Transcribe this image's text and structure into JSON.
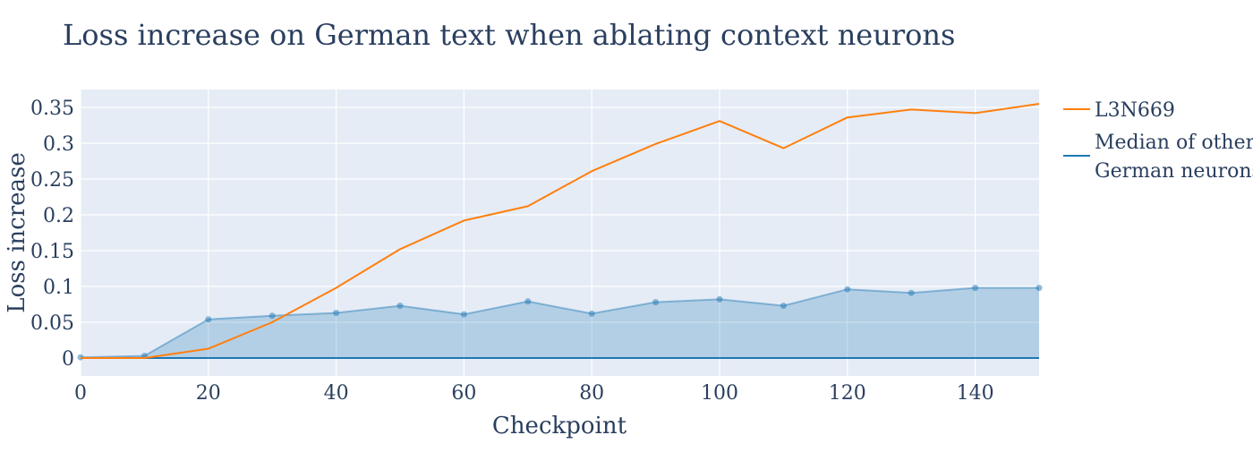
{
  "chart_data": {
    "type": "line",
    "title": "Loss increase on German text when ablating context neurons",
    "xlabel": "Checkpoint",
    "ylabel": "Loss increase",
    "xlim": [
      0,
      150
    ],
    "ylim": [
      -0.025,
      0.375
    ],
    "x_ticks": [
      0,
      20,
      40,
      60,
      80,
      100,
      120,
      140
    ],
    "x_tick_labels": [
      "0",
      "20",
      "40",
      "60",
      "80",
      "100",
      "120",
      "140"
    ],
    "y_ticks": [
      0,
      0.05,
      0.1,
      0.15,
      0.2,
      0.25,
      0.3,
      0.35
    ],
    "y_tick_labels": [
      "0",
      "0.05",
      "0.1",
      "0.15",
      "0.2",
      "0.25",
      "0.3",
      "0.35"
    ],
    "grid": true,
    "legend_position": "right",
    "x": [
      0,
      10,
      20,
      30,
      40,
      50,
      60,
      70,
      80,
      90,
      100,
      110,
      120,
      130,
      140,
      150
    ],
    "series": [
      {
        "name": "L3N669",
        "color": "#ff7f0e",
        "values": [
          0.0,
          0.0,
          0.013,
          0.05,
          0.098,
          0.152,
          0.192,
          0.212,
          0.261,
          0.299,
          0.331,
          0.293,
          0.336,
          0.347,
          0.342,
          0.355
        ]
      },
      {
        "name": "Median of other German neurons",
        "legend_lines": [
          "Median of other",
          "German neurons"
        ],
        "color": "#1f77b4",
        "values": [
          0.0,
          0.0,
          0.0,
          0.0,
          0.0,
          0.0,
          0.0,
          0.0,
          0.0,
          0.0,
          0.0,
          0.0,
          0.0,
          0.0,
          0.0,
          0.0
        ]
      }
    ],
    "band": {
      "color": "#1f77b4",
      "upper": [
        0.001,
        0.003,
        0.054,
        0.059,
        0.063,
        0.073,
        0.061,
        0.079,
        0.062,
        0.078,
        0.082,
        0.073,
        0.096,
        0.091,
        0.098,
        0.098
      ],
      "lower": [
        0.0,
        0.0,
        0.0,
        0.0,
        0.0,
        0.0,
        0.0,
        0.0,
        0.0,
        0.0,
        0.0,
        0.0,
        0.0,
        0.0,
        0.0,
        0.0
      ]
    }
  }
}
